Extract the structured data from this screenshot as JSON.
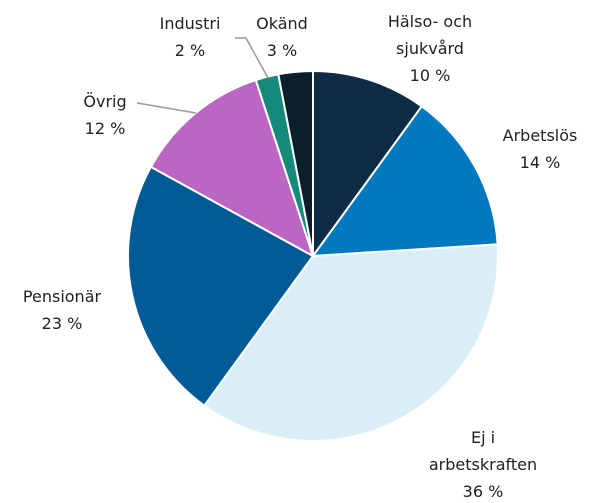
{
  "chart_data": {
    "type": "pie",
    "categories": [
      "Hälso- och sjukvård",
      "Arbetslös",
      "Ej i arbetskraften",
      "Pensionär",
      "Övrig",
      "Industri",
      "Okänd"
    ],
    "values": [
      10,
      14,
      36,
      23,
      12,
      2,
      3
    ],
    "value_labels": [
      "10 %",
      "14 %",
      "36 %",
      "23 %",
      "12 %",
      "2 %",
      "3 %"
    ],
    "colors": [
      "#0d2b45",
      "#0079c1",
      "#d9eef7",
      "#005a96",
      "#bb66c3",
      "#148a7a",
      "#0b1e2e"
    ]
  }
}
